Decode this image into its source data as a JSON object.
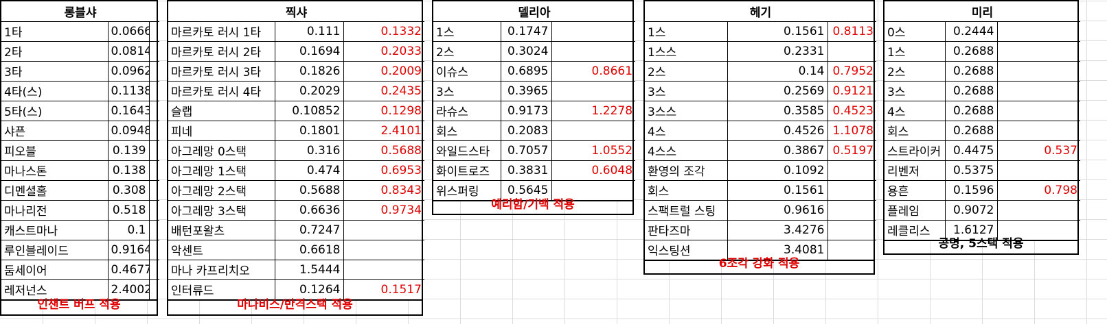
{
  "tables": {
    "rongbl": {
      "title": "롱블샤",
      "footer": "인챈트 버프 적용",
      "rows": [
        [
          "1타",
          "0.0666"
        ],
        [
          "2타",
          "0.0814"
        ],
        [
          "3타",
          "0.0962"
        ],
        [
          "4타(스)",
          "0.1138"
        ],
        [
          "5타(스)",
          "0.1643"
        ],
        [
          "샤픈",
          "0.0948"
        ],
        [
          "피오블",
          "0.139"
        ],
        [
          "마나스톤",
          "0.138"
        ],
        [
          "디멘셜홀",
          "0.308"
        ],
        [
          "마나리전",
          "0.518"
        ],
        [
          "캐스트마나",
          "0.1"
        ],
        [
          "루인블레이드",
          "0.9164"
        ],
        [
          "둠세이어",
          "0.4677"
        ],
        [
          "레저넌스",
          "2.4002"
        ]
      ]
    },
    "jjiksha": {
      "title": "찍샤",
      "footer": "마나비스/반격스택 적용",
      "rows": [
        [
          "마르카토 러시 1타",
          "0.111",
          "0.1332"
        ],
        [
          "마르카토 러시 2타",
          "0.1694",
          "0.2033"
        ],
        [
          "마르카토 러시 3타",
          "0.1826",
          "0.2009"
        ],
        [
          "마르카토 러시 4타",
          "0.2029",
          "0.2435"
        ],
        [
          "슬랩",
          "0.10852",
          "0.1298"
        ],
        [
          "피네",
          "0.1801",
          "2.4101"
        ],
        [
          "아그레망 0스택",
          "0.316",
          "0.5688"
        ],
        [
          "아그레망 1스택",
          "0.474",
          "0.6953"
        ],
        [
          "아그레망 2스택",
          "0.5688",
          "0.8343"
        ],
        [
          "아그레망 3스택",
          "0.6636",
          "0.9734"
        ],
        [
          "배턴포왈츠",
          "0.7247",
          ""
        ],
        [
          "악센트",
          "0.6618",
          ""
        ],
        [
          "마나 카프리치오",
          "1.5444",
          ""
        ],
        [
          "인터류드",
          "0.1264",
          "0.1517"
        ]
      ]
    },
    "delia": {
      "title": "델리아",
      "footer": "예리함/기백 적용",
      "rows": [
        [
          "1스",
          "0.1747",
          ""
        ],
        [
          "2스",
          "0.3024",
          ""
        ],
        [
          "이슈스",
          "0.6895",
          "0.8661"
        ],
        [
          "3스",
          "0.3965",
          ""
        ],
        [
          "라슈스",
          "0.9173",
          "1.2278"
        ],
        [
          "회스",
          "0.2083",
          ""
        ],
        [
          "와일드스타",
          "0.7057",
          "1.0552"
        ],
        [
          "화이트로즈",
          "0.3831",
          "0.6048"
        ],
        [
          "위스퍼링",
          "0.5645",
          ""
        ]
      ]
    },
    "hegi": {
      "title": "헤기",
      "footer": "6조각 강화 적용",
      "rows": [
        [
          "1스",
          "0.1561",
          "0.8113"
        ],
        [
          "1스스",
          "0.2331",
          ""
        ],
        [
          "2스",
          "0.14",
          "0.7952"
        ],
        [
          "3스",
          "0.2569",
          "0.9121"
        ],
        [
          "3스스",
          "0.3585",
          "0.4523"
        ],
        [
          "4스",
          "0.4526",
          "1.1078"
        ],
        [
          "4스스",
          "0.3867",
          "0.5197"
        ],
        [
          "환영의 조각",
          "0.1092",
          ""
        ],
        [
          "회스",
          "0.1561",
          ""
        ],
        [
          "스팩트럴 스팅",
          "0.9616",
          ""
        ],
        [
          "판타즈마",
          "3.4276",
          ""
        ],
        [
          "익스팅션",
          "3.4081",
          ""
        ]
      ]
    },
    "miri": {
      "title": "미리",
      "footer": "공명, 5스택 적용",
      "rows": [
        [
          "0스",
          "0.2444",
          ""
        ],
        [
          "1스",
          "0.2688",
          ""
        ],
        [
          "2스",
          "0.2688",
          ""
        ],
        [
          "3스",
          "0.2688",
          ""
        ],
        [
          "4스",
          "0.2688",
          ""
        ],
        [
          "회스",
          "0.2688",
          ""
        ],
        [
          "스트라이커",
          "0.4475",
          "0.537"
        ],
        [
          "리벤저",
          "0.5375",
          ""
        ],
        [
          "용흔",
          "0.1596",
          "0.798"
        ],
        [
          "플레임",
          "0.9072",
          ""
        ],
        [
          "레클리스",
          "1.6127",
          ""
        ]
      ]
    }
  }
}
